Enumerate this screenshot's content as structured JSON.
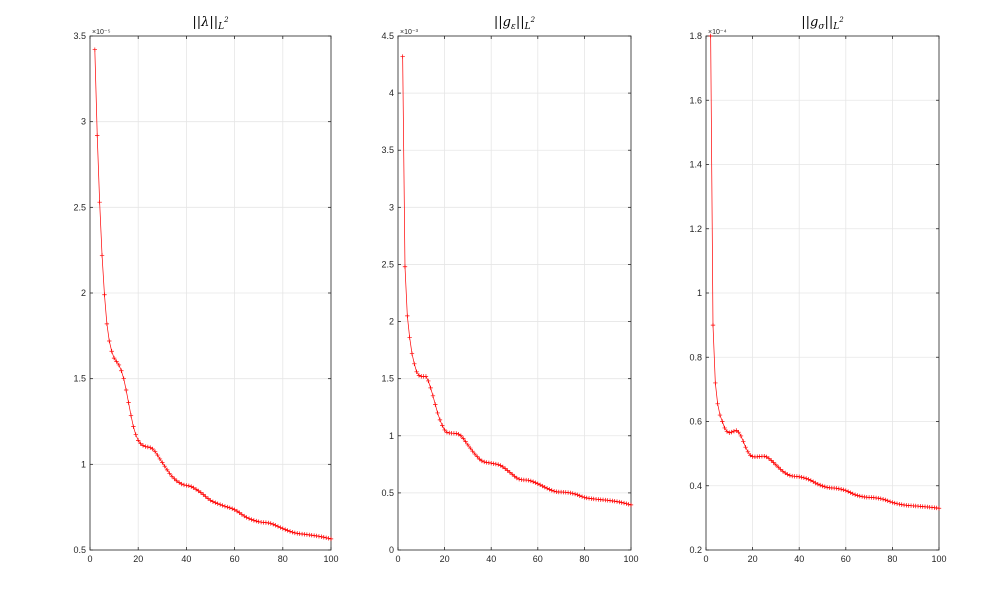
{
  "chart_data": [
    {
      "type": "line",
      "title": "||λ||_{L²}",
      "title_parts": {
        "main": "||λ||",
        "sub": "L",
        "sup": "2"
      },
      "exponent_label": "×10⁻⁵",
      "xlim": [
        0,
        100
      ],
      "ylim": [
        0.5,
        3.5
      ],
      "x_ticks": [
        0,
        20,
        40,
        60,
        80,
        100
      ],
      "y_ticks": [
        0.5,
        1,
        1.5,
        2,
        2.5,
        3,
        3.5
      ],
      "y_tick_labels": [
        "0.5",
        "1",
        "1.5",
        "2",
        "2.5",
        "3",
        "3.5"
      ],
      "grid": true,
      "line_color": "#ff0000",
      "marker": "plus",
      "knots": [
        [
          2,
          3.42
        ],
        [
          3,
          2.92
        ],
        [
          4,
          2.53
        ],
        [
          5,
          2.22
        ],
        [
          6,
          1.99
        ],
        [
          7,
          1.82
        ],
        [
          8,
          1.72
        ],
        [
          9,
          1.66
        ],
        [
          10,
          1.62
        ],
        [
          12,
          1.58
        ],
        [
          14,
          1.5
        ],
        [
          16,
          1.36
        ],
        [
          18,
          1.22
        ],
        [
          20,
          1.14
        ],
        [
          22,
          1.11
        ],
        [
          26,
          1.09
        ],
        [
          30,
          1.01
        ],
        [
          34,
          0.93
        ],
        [
          38,
          0.885
        ],
        [
          42,
          0.87
        ],
        [
          46,
          0.835
        ],
        [
          50,
          0.79
        ],
        [
          55,
          0.76
        ],
        [
          60,
          0.735
        ],
        [
          65,
          0.69
        ],
        [
          70,
          0.665
        ],
        [
          75,
          0.655
        ],
        [
          80,
          0.625
        ],
        [
          85,
          0.6
        ],
        [
          90,
          0.59
        ],
        [
          95,
          0.58
        ],
        [
          100,
          0.565
        ]
      ]
    },
    {
      "type": "line",
      "title": "||g_ε||_{L²}",
      "title_parts": {
        "main": "||g",
        "sub1": "ε",
        "mid": "||",
        "sub": "L",
        "sup": "2"
      },
      "exponent_label": "×10⁻³",
      "xlim": [
        0,
        100
      ],
      "ylim": [
        0,
        4.5
      ],
      "x_ticks": [
        0,
        20,
        40,
        60,
        80,
        100
      ],
      "y_ticks": [
        0,
        0.5,
        1,
        1.5,
        2,
        2.5,
        3,
        3.5,
        4,
        4.5
      ],
      "y_tick_labels": [
        "0",
        "0.5",
        "1",
        "1.5",
        "2",
        "2.5",
        "3",
        "3.5",
        "4",
        "4.5"
      ],
      "grid": true,
      "line_color": "#ff0000",
      "marker": "plus",
      "knots": [
        [
          2,
          4.32
        ],
        [
          3,
          2.48
        ],
        [
          4,
          2.05
        ],
        [
          5,
          1.86
        ],
        [
          6,
          1.72
        ],
        [
          7,
          1.63
        ],
        [
          8,
          1.56
        ],
        [
          10,
          1.52
        ],
        [
          12,
          1.52
        ],
        [
          13,
          1.48
        ],
        [
          15,
          1.35
        ],
        [
          17,
          1.2
        ],
        [
          19,
          1.09
        ],
        [
          21,
          1.03
        ],
        [
          25,
          1.02
        ],
        [
          27,
          1.0
        ],
        [
          30,
          0.92
        ],
        [
          33,
          0.84
        ],
        [
          36,
          0.78
        ],
        [
          40,
          0.76
        ],
        [
          44,
          0.74
        ],
        [
          48,
          0.68
        ],
        [
          52,
          0.62
        ],
        [
          56,
          0.61
        ],
        [
          60,
          0.58
        ],
        [
          64,
          0.54
        ],
        [
          68,
          0.51
        ],
        [
          72,
          0.505
        ],
        [
          76,
          0.49
        ],
        [
          80,
          0.46
        ],
        [
          85,
          0.445
        ],
        [
          90,
          0.435
        ],
        [
          95,
          0.42
        ],
        [
          100,
          0.395
        ]
      ]
    },
    {
      "type": "line",
      "title": "||g_σ||_{L²}",
      "title_parts": {
        "main": "||g",
        "sub1": "σ",
        "mid": "||",
        "sub": "L",
        "sup": "2"
      },
      "exponent_label": "×10⁻⁴",
      "xlim": [
        0,
        100
      ],
      "ylim": [
        0.2,
        1.8
      ],
      "x_ticks": [
        0,
        20,
        40,
        60,
        80,
        100
      ],
      "y_ticks": [
        0.2,
        0.4,
        0.6,
        0.8,
        1,
        1.2,
        1.4,
        1.6,
        1.8
      ],
      "y_tick_labels": [
        "0.2",
        "0.4",
        "0.6",
        "0.8",
        "1",
        "1.2",
        "1.4",
        "1.6",
        "1.8"
      ],
      "grid": true,
      "line_color": "#ff0000",
      "marker": "plus",
      "knots": [
        [
          2,
          1.8
        ],
        [
          3,
          0.9
        ],
        [
          4,
          0.72
        ],
        [
          5,
          0.655
        ],
        [
          6,
          0.62
        ],
        [
          7,
          0.6
        ],
        [
          8,
          0.58
        ],
        [
          10,
          0.565
        ],
        [
          12,
          0.57
        ],
        [
          13,
          0.572
        ],
        [
          15,
          0.555
        ],
        [
          17,
          0.52
        ],
        [
          19,
          0.495
        ],
        [
          21,
          0.49
        ],
        [
          25,
          0.492
        ],
        [
          27,
          0.485
        ],
        [
          30,
          0.465
        ],
        [
          33,
          0.445
        ],
        [
          36,
          0.432
        ],
        [
          40,
          0.428
        ],
        [
          44,
          0.42
        ],
        [
          48,
          0.405
        ],
        [
          52,
          0.395
        ],
        [
          56,
          0.392
        ],
        [
          60,
          0.385
        ],
        [
          64,
          0.372
        ],
        [
          68,
          0.365
        ],
        [
          72,
          0.363
        ],
        [
          76,
          0.358
        ],
        [
          80,
          0.348
        ],
        [
          85,
          0.34
        ],
        [
          90,
          0.337
        ],
        [
          95,
          0.334
        ],
        [
          100,
          0.33
        ]
      ]
    }
  ]
}
